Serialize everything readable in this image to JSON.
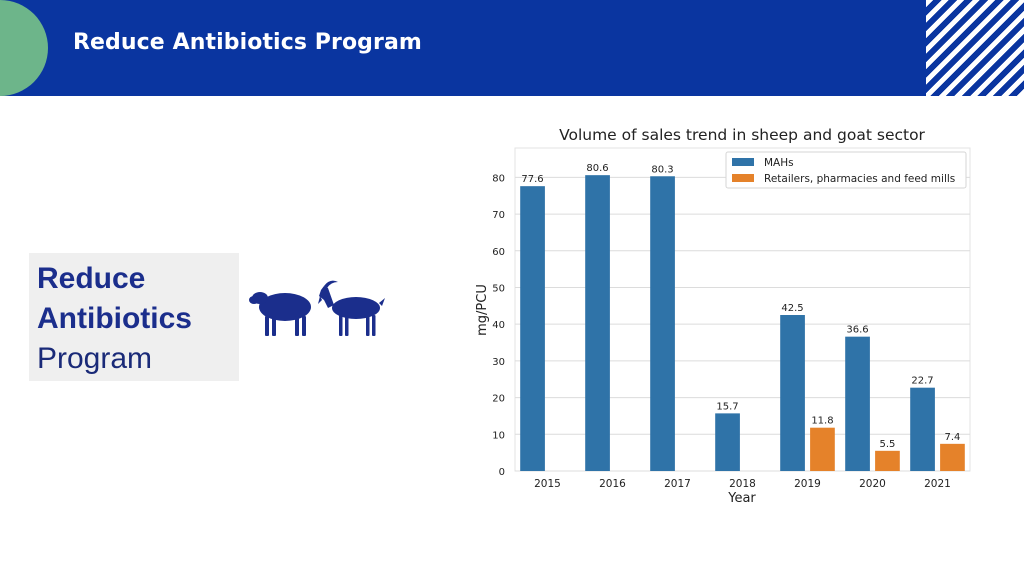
{
  "header": {
    "title": "Reduce Antibiotics Program"
  },
  "side_card": {
    "line1": "Reduce",
    "line2": "Antibiotics",
    "line3": "Program"
  },
  "icons": {
    "animals": "sheep-and-goat-icon"
  },
  "colors": {
    "header_bg": "#0a35a0",
    "accent_green": "#6db58a",
    "series_mahs": "#2f73a8",
    "series_retail": "#e5822a"
  },
  "chart_data": {
    "type": "bar",
    "title": "Volume of sales trend in sheep and goat sector",
    "xlabel": "Year",
    "ylabel": "mg/PCU",
    "ylim": [
      0,
      88
    ],
    "yticks": [
      0,
      10,
      20,
      30,
      40,
      50,
      60,
      70,
      80
    ],
    "categories": [
      "2015",
      "2016",
      "2017",
      "2018",
      "2019",
      "2020",
      "2021"
    ],
    "series": [
      {
        "name": "MAHs",
        "color": "#2f73a8",
        "values": [
          77.6,
          80.6,
          80.3,
          15.7,
          42.5,
          36.6,
          22.7
        ],
        "labels": [
          "77.6",
          "80.6",
          "80.3",
          "15.7",
          "42.5",
          "36.6",
          "22.7"
        ]
      },
      {
        "name": "Retailers, pharmacies and feed mills",
        "color": "#e5822a",
        "values": [
          null,
          null,
          null,
          null,
          11.8,
          5.5,
          7.4
        ],
        "labels": [
          "",
          "",
          "",
          "",
          "11.8",
          "5.5",
          "7.4"
        ]
      }
    ],
    "legend": "top-right",
    "grid": true
  }
}
